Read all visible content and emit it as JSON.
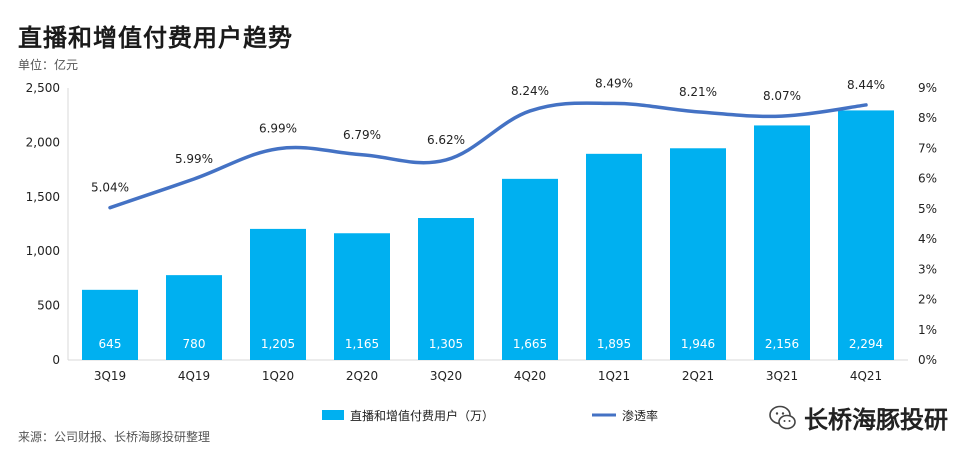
{
  "header": {
    "title": "直播和增值付费用户趋势",
    "unit": "单位：亿元"
  },
  "footer": {
    "source": "来源：公司财报、长桥海豚投研整理",
    "brand": "长桥海豚投研"
  },
  "colors": {
    "bar": "#00B0F0",
    "line": "#4472C4"
  },
  "chart_data": {
    "type": "bar+line",
    "categories": [
      "3Q19",
      "4Q19",
      "1Q20",
      "2Q20",
      "3Q20",
      "4Q20",
      "1Q21",
      "2Q21",
      "3Q21",
      "4Q21"
    ],
    "series": [
      {
        "name": "直播和增值付费用户（万）",
        "type": "bar",
        "axis": "left",
        "values": [
          645,
          780,
          1205,
          1165,
          1305,
          1665,
          1895,
          1946,
          2156,
          2294
        ],
        "labels": [
          "645",
          "780",
          "1,205",
          "1,165",
          "1,305",
          "1,665",
          "1,895",
          "1,946",
          "2,156",
          "2,294"
        ]
      },
      {
        "name": "渗透率",
        "type": "line",
        "axis": "right",
        "values": [
          5.04,
          5.99,
          6.99,
          6.79,
          6.62,
          8.24,
          8.49,
          8.21,
          8.07,
          8.44
        ],
        "labels": [
          "5.04%",
          "5.99%",
          "6.99%",
          "6.79%",
          "6.62%",
          "8.24%",
          "8.49%",
          "8.21%",
          "8.07%",
          "8.44%"
        ]
      }
    ],
    "left_axis": {
      "range": [
        0,
        2500
      ],
      "ticks": [
        "0",
        "500",
        "1,000",
        "1,500",
        "2,000",
        "2,500"
      ]
    },
    "right_axis": {
      "range": [
        0,
        9
      ],
      "ticks": [
        "0%",
        "1%",
        "2%",
        "3%",
        "4%",
        "5%",
        "6%",
        "7%",
        "8%",
        "9%"
      ]
    },
    "grid": false,
    "legend_position": "bottom"
  }
}
